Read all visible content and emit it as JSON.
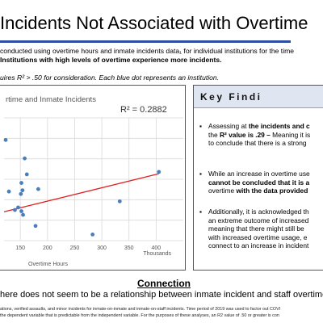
{
  "slide": {
    "title": "Incidents Not Associated with Overtime",
    "intro_line1": "conducted using overtime hours and inmate incidents data₁ for individual institutions for the time",
    "intro_line2": "Institutions with high levels of overtime experience more incidents.",
    "intro_line3": "uires R²  > .50 for consideration. Each blue dot represents an institution.",
    "accent_color": "#2e4ea1"
  },
  "key_findings": {
    "title": "Key Findi",
    "bullets": [
      [
        "Assessing at |the incidents and c",
        "the |R² value is .29 –| Meaning it is",
        "to conclude that there is a strong"
      ],
      [
        "While an increase in overtime use",
        "|cannot be concluded that it is a",
        "overtime| with the data provided"
      ],
      [
        "Additionally, it is acknowledged th",
        "an extreme outcome of increased",
        "meaning that there might still be",
        "with increased overtime usage, e",
        "connect to an increase in incident"
      ]
    ]
  },
  "connection": {
    "title": "Connection",
    "text": "here does not seem to be a relationship between inmate incident and staff overtime"
  },
  "footnotes": {
    "line1": "ations, verified assaults, and minor incidents for inmate-on-inmate and inmate-on-staff incidents. Time period of 2019 was used to factor out COVI",
    "line2": "the dependent variable that is predictable from the independent variable. For the purposes of these analyses, an R2 value of .50 or greater is con"
  },
  "chart_data": {
    "type": "scatter",
    "title": "rtime and Inmate Incidents",
    "r_squared_label": "R² = 0.2882",
    "xlabel": "Overtime Hours",
    "x_unit_label": "Thousands",
    "ylabel": "",
    "xlim": [
      120,
      450
    ],
    "ylim": [
      0,
      1
    ],
    "x_ticks": [
      {
        "value": 150,
        "label": "150"
      },
      {
        "value": 200,
        "label": "200"
      },
      {
        "value": 250,
        "label": "250"
      },
      {
        "value": 300,
        "label": "300"
      },
      {
        "value": 350,
        "label": "350"
      },
      {
        "value": 400,
        "label": "400"
      }
    ],
    "grid": true,
    "series": [
      {
        "color": "#4a7ebb",
        "points": [
          {
            "x": 123,
            "y": 0.82
          },
          {
            "x": 158,
            "y": 0.67
          },
          {
            "x": 162,
            "y": 0.54
          },
          {
            "x": 405,
            "y": 0.56
          },
          {
            "x": 152,
            "y": 0.47
          },
          {
            "x": 154,
            "y": 0.41
          },
          {
            "x": 183,
            "y": 0.42
          },
          {
            "x": 129,
            "y": 0.4
          },
          {
            "x": 151,
            "y": 0.38
          },
          {
            "x": 333,
            "y": 0.32
          },
          {
            "x": 146,
            "y": 0.27
          },
          {
            "x": 140,
            "y": 0.25
          },
          {
            "x": 152,
            "y": 0.24
          },
          {
            "x": 155,
            "y": 0.21
          },
          {
            "x": 178,
            "y": 0.12
          },
          {
            "x": 283,
            "y": 0.05
          }
        ]
      }
    ],
    "trendline": {
      "color": "#e02020",
      "from": {
        "x": 120,
        "y": 0.235
      },
      "to": {
        "x": 405,
        "y": 0.545
      }
    }
  }
}
